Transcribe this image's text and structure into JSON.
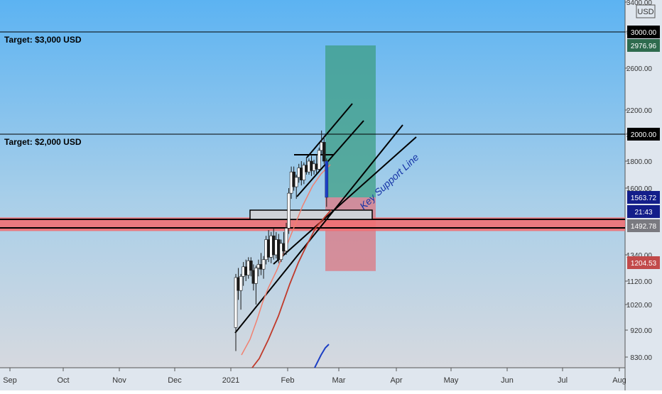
{
  "chart_data": {
    "type": "candlestick",
    "currency": "USD",
    "price_axis": {
      "ticks": [
        3400,
        3000,
        2600,
        2200,
        2000,
        1800,
        1600,
        1340,
        1120,
        1020,
        920,
        830
      ],
      "tick_labels": [
        "3400.00",
        "3000.00",
        "2600.00",
        "2200.00",
        "2000.00",
        "1800.00",
        "1600.00",
        "1340.00",
        "1120.00",
        "1020.00",
        "920.00",
        "830.00"
      ]
    },
    "time_axis": {
      "labels": [
        "Sep",
        "Oct",
        "Nov",
        "Dec",
        "2021",
        "Feb",
        "Mar",
        "Apr",
        "May",
        "Jun",
        "Jul",
        "Aug"
      ]
    },
    "badges": [
      {
        "label": "3000.00",
        "price": 3000,
        "color": "#000000"
      },
      {
        "label": "2976.96",
        "price": 2976.96,
        "color": "#2e6b4e"
      },
      {
        "label": "2000.00",
        "price": 2000,
        "color": "#000000"
      },
      {
        "label": "1563.72",
        "price": 1563.72,
        "color": "#131e8a"
      },
      {
        "label": "21:43",
        "price": 1520,
        "color": "#131e8a"
      },
      {
        "label": "1492.78",
        "price": 1492.78,
        "color": "#7a7a80"
      },
      {
        "label": "1204.53",
        "price": 1204.53,
        "color": "#c24a4a"
      }
    ],
    "annotations": [
      {
        "text": "Target: $3,000 USD",
        "price": 3000
      },
      {
        "text": "Target: $2,000 USD",
        "price": 2000
      },
      {
        "text": "Key Support Line"
      }
    ],
    "position": {
      "entry": 1563.72,
      "target": 2976.96,
      "stop": 1204.53
    },
    "support_zone": [
      1480,
      1510
    ],
    "series": [
      {
        "name": "",
        "color": "#f08070"
      },
      {
        "name": "",
        "color": "#c03a2b"
      }
    ],
    "ohlc": [
      {
        "t": 0.0,
        "o": 930,
        "h": 1180,
        "l": 850,
        "c": 1150
      },
      {
        "t": 0.5,
        "o": 1150,
        "h": 1230,
        "l": 1040,
        "c": 1080
      },
      {
        "t": 1.0,
        "o": 1080,
        "h": 1180,
        "l": 1000,
        "c": 1160
      },
      {
        "t": 1.5,
        "o": 1160,
        "h": 1280,
        "l": 1100,
        "c": 1240
      },
      {
        "t": 2.0,
        "o": 1240,
        "h": 1300,
        "l": 1120,
        "c": 1170
      },
      {
        "t": 2.5,
        "o": 1170,
        "h": 1320,
        "l": 1140,
        "c": 1290
      },
      {
        "t": 3.0,
        "o": 1290,
        "h": 1320,
        "l": 1160,
        "c": 1210
      },
      {
        "t": 3.5,
        "o": 1210,
        "h": 1260,
        "l": 1080,
        "c": 1110
      },
      {
        "t": 4.0,
        "o": 1110,
        "h": 1250,
        "l": 1020,
        "c": 1230
      },
      {
        "t": 4.5,
        "o": 1230,
        "h": 1300,
        "l": 1160,
        "c": 1260
      },
      {
        "t": 5.0,
        "o": 1260,
        "h": 1350,
        "l": 1170,
        "c": 1220
      },
      {
        "t": 5.5,
        "o": 1220,
        "h": 1330,
        "l": 1140,
        "c": 1300
      },
      {
        "t": 6.0,
        "o": 1300,
        "h": 1440,
        "l": 1260,
        "c": 1420
      },
      {
        "t": 6.5,
        "o": 1420,
        "h": 1470,
        "l": 1280,
        "c": 1320
      },
      {
        "t": 7.0,
        "o": 1320,
        "h": 1460,
        "l": 1270,
        "c": 1440
      },
      {
        "t": 7.5,
        "o": 1440,
        "h": 1480,
        "l": 1300,
        "c": 1340
      },
      {
        "t": 8.0,
        "o": 1340,
        "h": 1460,
        "l": 1310,
        "c": 1420
      },
      {
        "t": 8.5,
        "o": 1420,
        "h": 1450,
        "l": 1270,
        "c": 1300
      },
      {
        "t": 9.0,
        "o": 1300,
        "h": 1420,
        "l": 1280,
        "c": 1400
      },
      {
        "t": 9.5,
        "o": 1400,
        "h": 1460,
        "l": 1330,
        "c": 1360
      },
      {
        "t": 10.0,
        "o": 1360,
        "h": 1500,
        "l": 1340,
        "c": 1480
      },
      {
        "t": 10.5,
        "o": 1480,
        "h": 1600,
        "l": 1450,
        "c": 1580
      },
      {
        "t": 11.0,
        "o": 1580,
        "h": 1760,
        "l": 1560,
        "c": 1720
      },
      {
        "t": 11.5,
        "o": 1720,
        "h": 1760,
        "l": 1590,
        "c": 1610
      },
      {
        "t": 12.0,
        "o": 1610,
        "h": 1700,
        "l": 1560,
        "c": 1680
      },
      {
        "t": 12.5,
        "o": 1680,
        "h": 1780,
        "l": 1640,
        "c": 1750
      },
      {
        "t": 13.0,
        "o": 1750,
        "h": 1800,
        "l": 1620,
        "c": 1660
      },
      {
        "t": 13.5,
        "o": 1660,
        "h": 1790,
        "l": 1630,
        "c": 1770
      },
      {
        "t": 14.0,
        "o": 1770,
        "h": 1830,
        "l": 1700,
        "c": 1720
      },
      {
        "t": 14.5,
        "o": 1720,
        "h": 1820,
        "l": 1700,
        "c": 1800
      },
      {
        "t": 15.0,
        "o": 1800,
        "h": 1840,
        "l": 1690,
        "c": 1730
      },
      {
        "t": 15.5,
        "o": 1730,
        "h": 1810,
        "l": 1700,
        "c": 1780
      },
      {
        "t": 16.0,
        "o": 1780,
        "h": 1850,
        "l": 1710,
        "c": 1740
      },
      {
        "t": 16.5,
        "o": 1740,
        "h": 1900,
        "l": 1730,
        "c": 1880
      },
      {
        "t": 17.0,
        "o": 1880,
        "h": 2030,
        "l": 1850,
        "c": 1940
      },
      {
        "t": 17.5,
        "o": 1940,
        "h": 1990,
        "l": 1780,
        "c": 1800
      },
      {
        "t": 18.0,
        "o": 1800,
        "h": 1820,
        "l": 1540,
        "c": 1564
      }
    ],
    "volume_profile_note": ""
  }
}
